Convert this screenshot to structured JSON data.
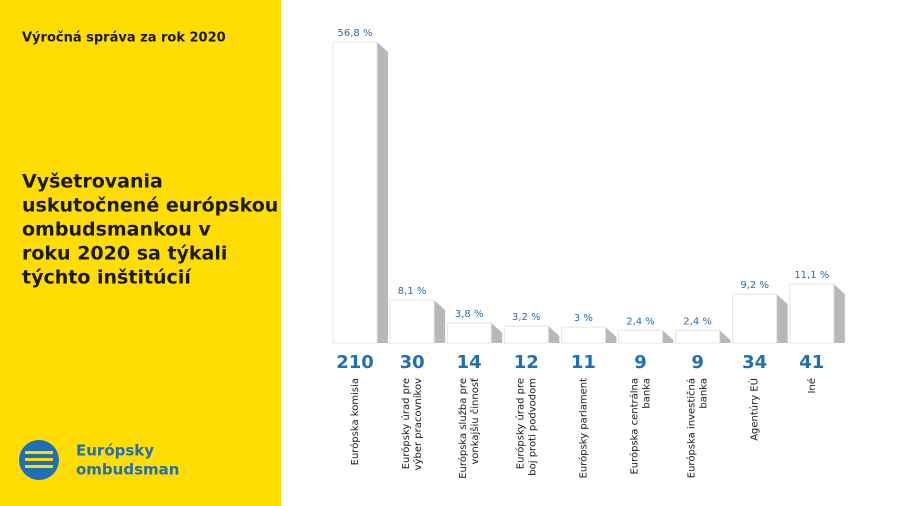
{
  "header": "Výročná správa za rok 2020",
  "logo": [
    "Európsky",
    "ombudsman"
  ],
  "chart_data": {
    "type": "bar",
    "title": [
      "Vyšetrovania",
      "uskutočnené európskou",
      "ombudsmankou v",
      "roku 2020 sa týkali",
      "týchto inštitúcií"
    ],
    "categories": [
      [
        "Európska komisia"
      ],
      [
        "Európsky úrad pre",
        "výber pracovníkov"
      ],
      [
        "Európska služba pre",
        "vonkajšiu činnosť"
      ],
      [
        "Európsky úrad pre",
        "boj proti podvodom"
      ],
      [
        "Európsky parlament"
      ],
      [
        "Európska centrálna",
        "banka"
      ],
      [
        "Európska investičná",
        "banka"
      ],
      [
        "Agentúry EÚ"
      ],
      [
        "Iné"
      ]
    ],
    "values": [
      56.8,
      8.1,
      3.8,
      3.2,
      3,
      2.4,
      2.4,
      9.2,
      11.1
    ],
    "value_labels": [
      "56,8 %",
      "8,1 %",
      "3,8 %",
      "3,2 %",
      "3 %",
      "2,4 %",
      "2,4 %",
      "9,2 %",
      "11,1 %"
    ],
    "counts": [
      210,
      30,
      14,
      12,
      11,
      9,
      9,
      34,
      41
    ],
    "colors": [
      "#1f6fb5",
      "#b3b3b3",
      "#f7d117",
      "#555555",
      "#7a5a12",
      "#f0a830",
      "#1f3f8a",
      "#3a9ad9",
      "#0d3a5c"
    ]
  }
}
